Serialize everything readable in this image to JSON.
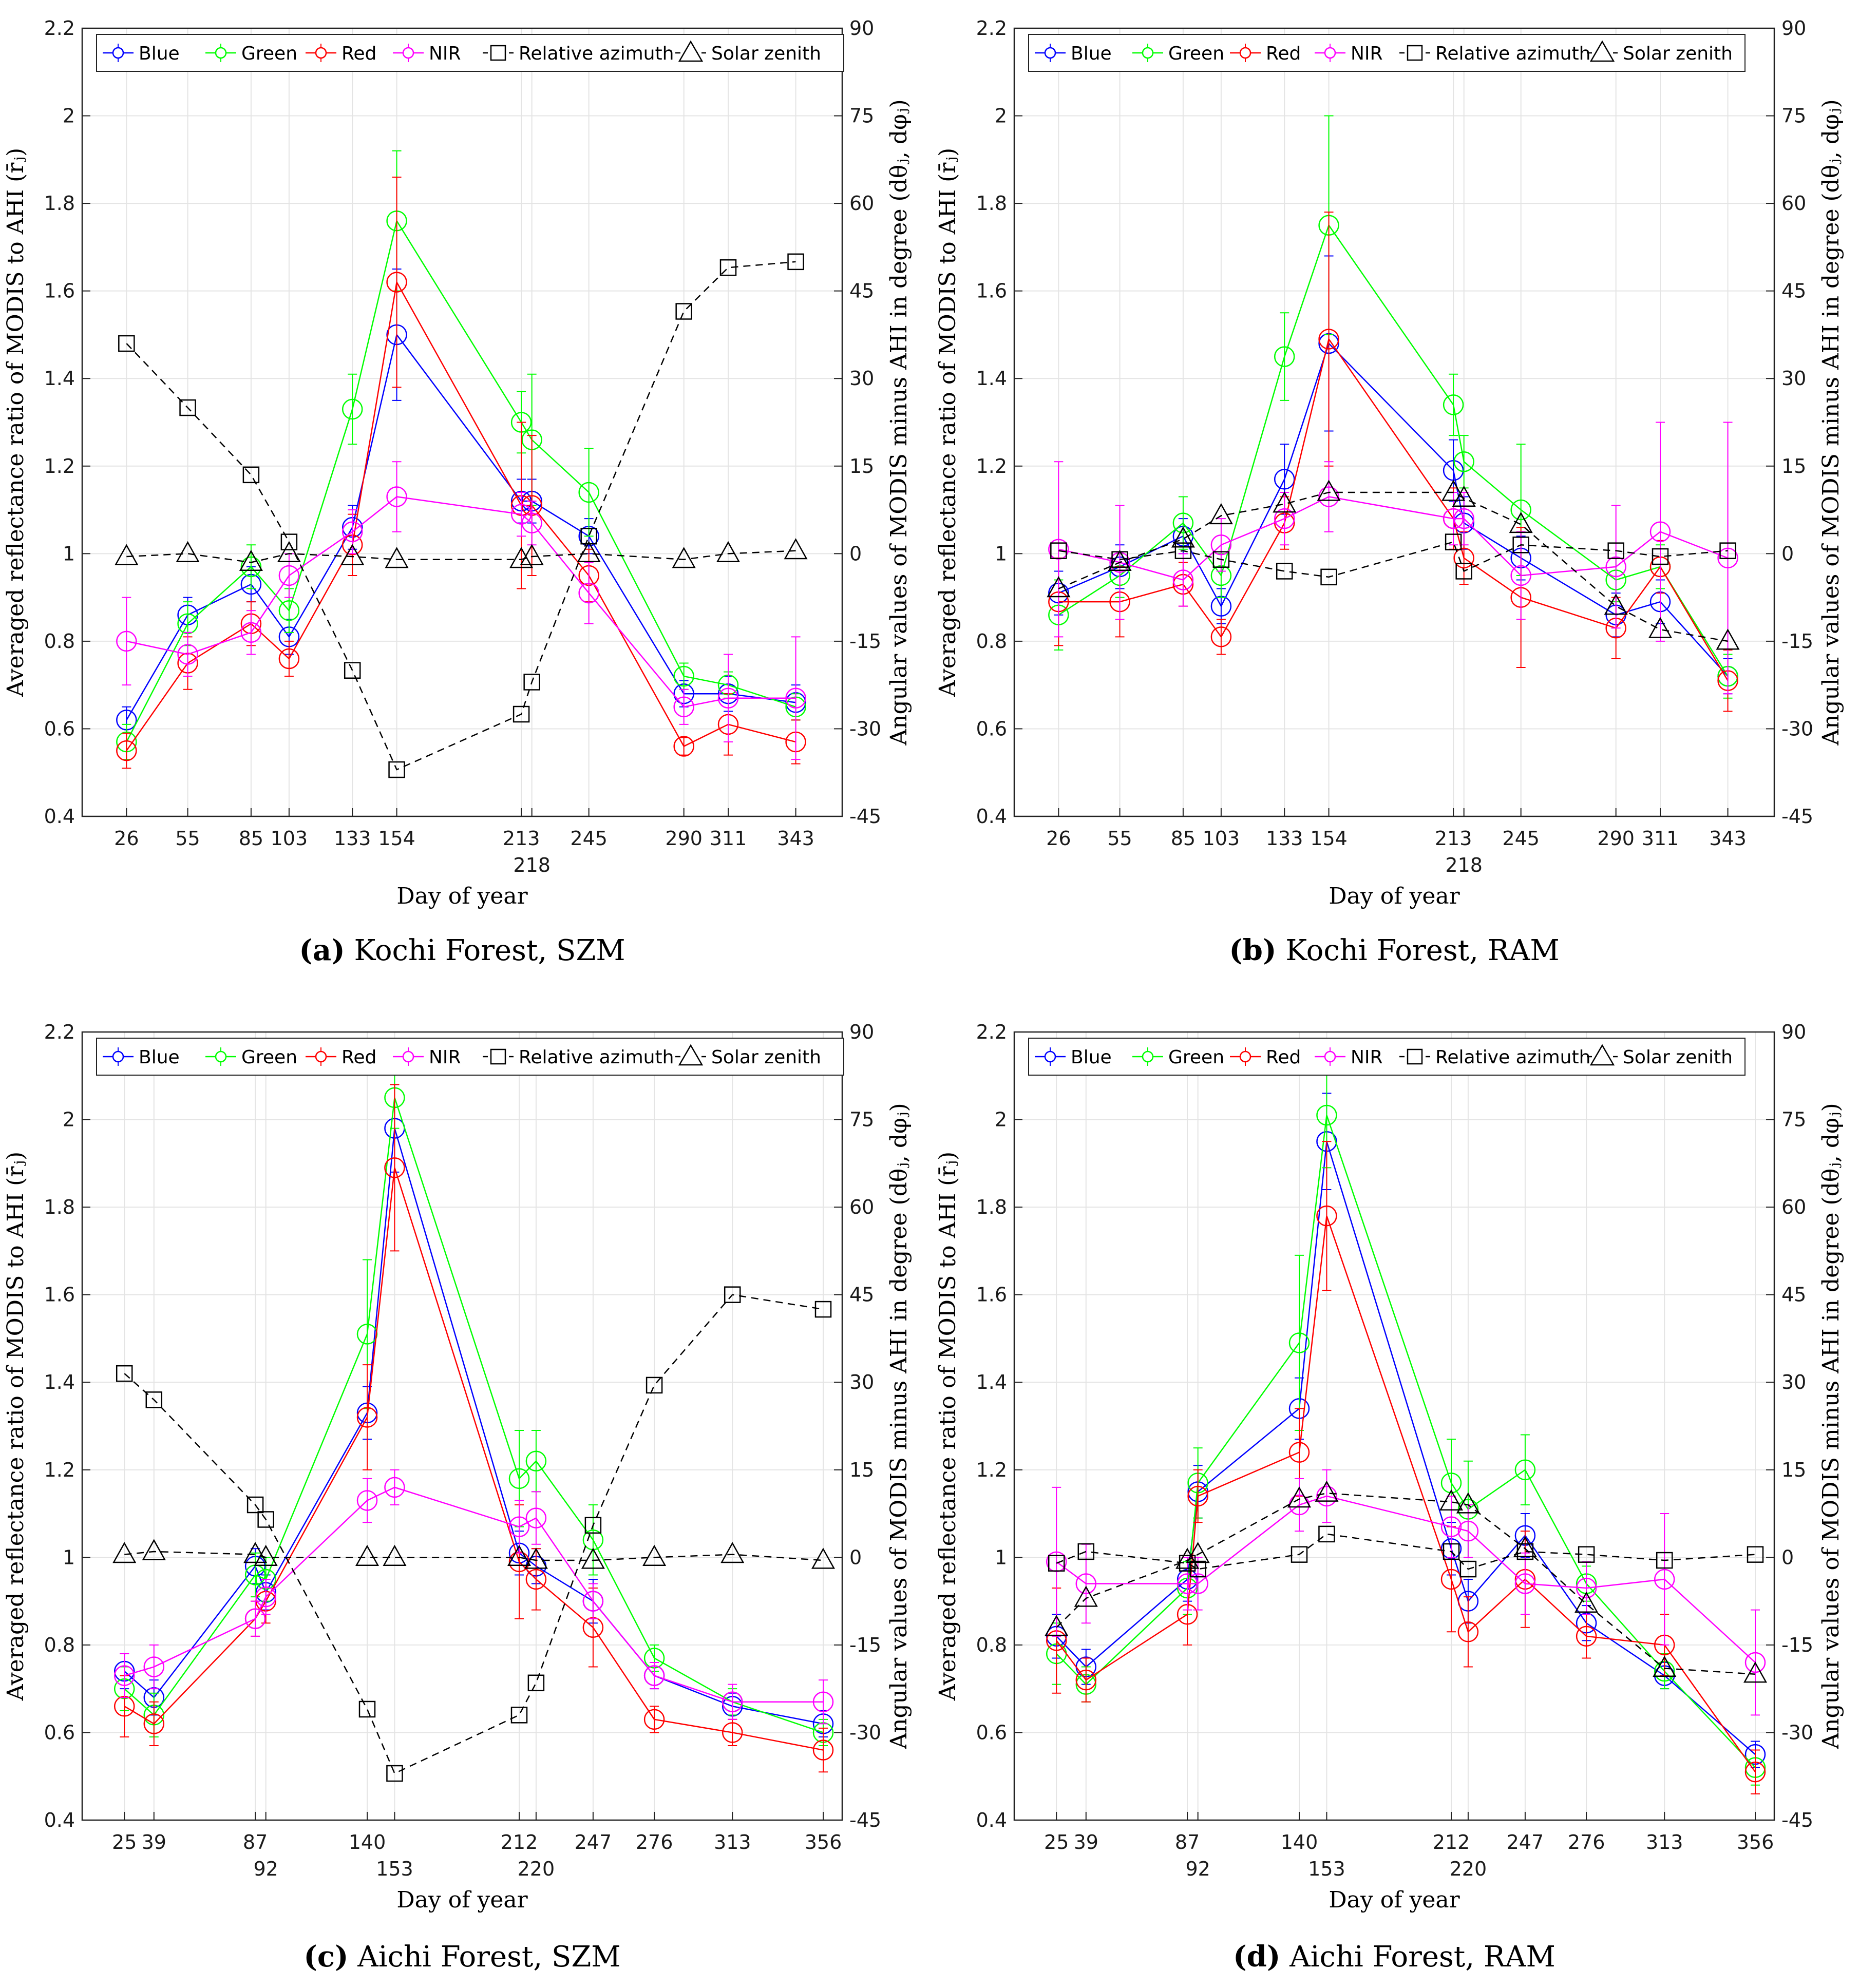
{
  "colors": {
    "blue": "#0000ff",
    "green": "#00ff00",
    "red": "#ff0000",
    "nir": "#ff00ff",
    "angles": "#000000"
  },
  "legend": [
    "Blue",
    "Green",
    "Red",
    "NIR",
    "Relative azimuth",
    "Solar zenith"
  ],
  "chart_data": [
    {
      "type": "line",
      "panel": "a",
      "caption_letter": "(a)",
      "caption_text": " Kochi Forest, SZM",
      "xlabel": "Day of year",
      "ylabel": "Averaged reflectance ratio of MODIS to AHI (r̄ⱼ)",
      "ylabel_right": "Angular values of MODIS minus AHI in degree (dθⱼ, dφⱼ)",
      "ylim": [
        0.4,
        2.2
      ],
      "yticks": [
        "0.4",
        "0.6",
        "0.8",
        "1",
        "1.2",
        "1.4",
        "1.6",
        "1.8",
        "2",
        "2.2"
      ],
      "y2lim": [
        -45,
        90
      ],
      "y2ticks": [
        "-45",
        "-30",
        "-15",
        "0",
        "15",
        "30",
        "45",
        "60",
        "75",
        "90"
      ],
      "xlim": [
        5,
        365
      ],
      "x": [
        26,
        55,
        85,
        103,
        133,
        154,
        213,
        218,
        245,
        290,
        311,
        343
      ],
      "xtick_labels": [
        "26",
        "55",
        "85",
        "103",
        "133",
        "154",
        "213",
        "218",
        "245",
        "290",
        "311",
        "343"
      ],
      "xtick_lower": [
        "218"
      ],
      "series": [
        {
          "name": "Blue",
          "values": [
            0.62,
            0.86,
            0.93,
            0.81,
            1.06,
            1.5,
            1.12,
            1.12,
            1.04,
            0.68,
            0.68,
            0.66
          ],
          "errors": [
            0.03,
            0.04,
            0.04,
            0.04,
            0.05,
            0.15,
            0.05,
            0.05,
            0.04,
            0.03,
            0.04,
            0.04
          ]
        },
        {
          "name": "Green",
          "values": [
            0.57,
            0.84,
            0.97,
            0.87,
            1.33,
            1.76,
            1.3,
            1.26,
            1.14,
            0.72,
            0.7,
            0.65
          ],
          "errors": [
            0.04,
            0.05,
            0.05,
            0.05,
            0.08,
            0.16,
            0.07,
            0.15,
            0.1,
            0.03,
            0.03,
            0.03
          ]
        },
        {
          "name": "Red",
          "values": [
            0.55,
            0.75,
            0.84,
            0.76,
            1.02,
            1.62,
            1.11,
            1.11,
            0.95,
            0.56,
            0.61,
            0.57
          ],
          "errors": [
            0.04,
            0.06,
            0.05,
            0.04,
            0.07,
            0.24,
            0.19,
            0.16,
            0.06,
            0.02,
            0.07,
            0.05
          ]
        },
        {
          "name": "NIR",
          "values": [
            0.8,
            0.77,
            0.82,
            0.95,
            1.05,
            1.13,
            1.09,
            1.07,
            0.91,
            0.65,
            0.67,
            0.67
          ],
          "errors": [
            0.1,
            0.05,
            0.05,
            0.05,
            0.05,
            0.08,
            0.05,
            0.05,
            0.07,
            0.04,
            0.1,
            0.14
          ]
        },
        {
          "name": "Relative azimuth",
          "axis": "right",
          "values": [
            36,
            25,
            13.5,
            2,
            -20,
            -37,
            -27.5,
            -22,
            3,
            41.5,
            49,
            50
          ]
        },
        {
          "name": "Solar zenith",
          "axis": "right",
          "values": [
            -0.5,
            0,
            -1.5,
            0,
            -0.5,
            -1,
            -1,
            -0.5,
            0,
            -1,
            0,
            0.5
          ]
        }
      ]
    },
    {
      "type": "line",
      "panel": "b",
      "caption_letter": "(b)",
      "caption_text": " Kochi Forest, RAM",
      "xlabel": "Day of year",
      "ylabel": "Averaged reflectance ratio of MODIS to AHI (r̄ⱼ)",
      "ylabel_right": "Angular values of MODIS minus AHI in degree (dθⱼ, dφⱼ)",
      "ylim": [
        0.4,
        2.2
      ],
      "yticks": [
        "0.4",
        "0.6",
        "0.8",
        "1",
        "1.2",
        "1.4",
        "1.6",
        "1.8",
        "2",
        "2.2"
      ],
      "y2lim": [
        -45,
        90
      ],
      "y2ticks": [
        "-45",
        "-30",
        "-15",
        "0",
        "15",
        "30",
        "45",
        "60",
        "75",
        "90"
      ],
      "xlim": [
        5,
        365
      ],
      "x": [
        26,
        55,
        85,
        103,
        133,
        154,
        213,
        218,
        245,
        290,
        311,
        343
      ],
      "xtick_labels": [
        "26",
        "55",
        "85",
        "103",
        "133",
        "154",
        "213",
        "218",
        "245",
        "290",
        "311",
        "343"
      ],
      "xtick_lower": [
        "218"
      ],
      "series": [
        {
          "name": "Blue",
          "values": [
            0.91,
            0.97,
            1.04,
            0.88,
            1.17,
            1.48,
            1.19,
            1.07,
            0.99,
            0.86,
            0.89,
            0.72
          ],
          "errors": [
            0.05,
            0.05,
            0.04,
            0.04,
            0.08,
            0.2,
            0.07,
            0.06,
            0.05,
            0.05,
            0.05,
            0.04
          ]
        },
        {
          "name": "Green",
          "values": [
            0.86,
            0.95,
            1.07,
            0.95,
            1.45,
            1.75,
            1.34,
            1.21,
            1.1,
            0.94,
            0.97,
            0.72
          ],
          "errors": [
            0.08,
            0.05,
            0.06,
            0.05,
            0.1,
            0.25,
            0.07,
            0.06,
            0.15,
            0.05,
            0.05,
            0.05
          ]
        },
        {
          "name": "Red",
          "values": [
            0.89,
            0.89,
            0.93,
            0.81,
            1.07,
            1.49,
            1.08,
            0.99,
            0.9,
            0.83,
            0.97,
            0.71
          ],
          "errors": [
            0.1,
            0.08,
            0.05,
            0.04,
            0.06,
            0.29,
            0.07,
            0.06,
            0.16,
            0.07,
            0.06,
            0.07
          ]
        },
        {
          "name": "NIR",
          "values": [
            1.01,
            0.98,
            0.94,
            1.02,
            1.08,
            1.13,
            1.08,
            1.08,
            0.95,
            0.97,
            1.05,
            0.99
          ],
          "errors": [
            0.2,
            0.13,
            0.06,
            0.06,
            0.06,
            0.08,
            0.06,
            0.06,
            0.1,
            0.14,
            0.25,
            0.31
          ]
        },
        {
          "name": "Relative azimuth",
          "axis": "right",
          "values": [
            0.5,
            -1,
            0.5,
            -1,
            -3,
            -4,
            2,
            -3,
            1.5,
            0.5,
            -0.5,
            0.5
          ]
        },
        {
          "name": "Solar zenith",
          "axis": "right",
          "values": [
            -6,
            -1.5,
            2.5,
            6.5,
            8.5,
            10.5,
            10.5,
            9.5,
            5,
            -9,
            -13,
            -15
          ]
        }
      ]
    },
    {
      "type": "line",
      "panel": "c",
      "caption_letter": "(c)",
      "caption_text": " Aichi Forest, SZM",
      "xlabel": "Day of year",
      "ylabel": "Averaged reflectance ratio of MODIS to AHI (r̄ⱼ)",
      "ylabel_right": "Angular values of MODIS minus AHI in degree (dθⱼ, dφⱼ)",
      "ylim": [
        0.4,
        2.2
      ],
      "yticks": [
        "0.4",
        "0.6",
        "0.8",
        "1",
        "1.2",
        "1.4",
        "1.6",
        "1.8",
        "2",
        "2.2"
      ],
      "y2lim": [
        -45,
        90
      ],
      "y2ticks": [
        "-45",
        "-30",
        "-15",
        "0",
        "15",
        "30",
        "45",
        "60",
        "75",
        "90"
      ],
      "xlim": [
        5,
        365
      ],
      "x": [
        25,
        39,
        87,
        92,
        140,
        153,
        212,
        220,
        247,
        276,
        313,
        356
      ],
      "xtick_labels": [
        "25",
        "39",
        "87",
        "92",
        "140",
        "153",
        "212",
        "220",
        "247",
        "276",
        "313",
        "356"
      ],
      "xtick_lower": [
        "92",
        "153",
        "220"
      ],
      "series": [
        {
          "name": "Blue",
          "values": [
            0.74,
            0.68,
            0.98,
            0.92,
            1.33,
            1.98,
            1.01,
            0.98,
            0.9,
            0.73,
            0.66,
            0.62
          ],
          "errors": [
            0.04,
            0.04,
            0.04,
            0.04,
            0.06,
            0.1,
            0.05,
            0.04,
            0.05,
            0.03,
            0.03,
            0.03
          ]
        },
        {
          "name": "Green",
          "values": [
            0.7,
            0.64,
            0.96,
            0.95,
            1.51,
            2.05,
            1.18,
            1.22,
            1.04,
            0.77,
            0.67,
            0.6
          ],
          "errors": [
            0.05,
            0.05,
            0.05,
            0.05,
            0.17,
            0.07,
            0.11,
            0.07,
            0.08,
            0.03,
            0.03,
            0.03
          ]
        },
        {
          "name": "Red",
          "values": [
            0.66,
            0.62,
            0.86,
            0.9,
            1.32,
            1.89,
            0.99,
            0.95,
            0.84,
            0.63,
            0.6,
            0.56
          ],
          "errors": [
            0.07,
            0.05,
            0.04,
            0.05,
            0.12,
            0.19,
            0.13,
            0.07,
            0.09,
            0.03,
            0.03,
            0.05
          ]
        },
        {
          "name": "NIR",
          "values": [
            0.73,
            0.75,
            0.86,
            0.91,
            1.13,
            1.16,
            1.07,
            1.09,
            0.9,
            0.73,
            0.67,
            0.67
          ],
          "errors": [
            0.05,
            0.05,
            0.04,
            0.04,
            0.05,
            0.04,
            0.06,
            0.06,
            0.04,
            0.03,
            0.04,
            0.05
          ]
        },
        {
          "name": "Relative azimuth",
          "axis": "right",
          "values": [
            31.5,
            27,
            9,
            6.5,
            -26,
            -37,
            -27,
            -21.5,
            5.5,
            29.5,
            45,
            42.5
          ]
        },
        {
          "name": "Solar zenith",
          "axis": "right",
          "values": [
            0.5,
            1,
            0.5,
            0,
            0,
            0,
            0,
            -0.5,
            -0.5,
            0,
            0.5,
            -0.5
          ]
        }
      ]
    },
    {
      "type": "line",
      "panel": "d",
      "caption_letter": "(d)",
      "caption_text": " Aichi Forest, RAM",
      "xlabel": "Day of year",
      "ylabel": "Averaged reflectance ratio of MODIS to AHI (r̄ⱼ)",
      "ylabel_right": "Angular values of MODIS minus AHI in degree (dθⱼ, dφⱼ)",
      "ylim": [
        0.4,
        2.2
      ],
      "yticks": [
        "0.4",
        "0.6",
        "0.8",
        "1",
        "1.2",
        "1.4",
        "1.6",
        "1.8",
        "2",
        "2.2"
      ],
      "y2lim": [
        -45,
        90
      ],
      "y2ticks": [
        "-45",
        "-30",
        "-15",
        "0",
        "15",
        "30",
        "45",
        "60",
        "75",
        "90"
      ],
      "xlim": [
        5,
        365
      ],
      "x": [
        25,
        39,
        87,
        92,
        140,
        153,
        212,
        220,
        247,
        276,
        313,
        356
      ],
      "xtick_labels": [
        "25",
        "39",
        "87",
        "92",
        "140",
        "153",
        "212",
        "220",
        "247",
        "276",
        "313",
        "356"
      ],
      "xtick_lower": [
        "92",
        "153",
        "220"
      ],
      "series": [
        {
          "name": "Blue",
          "values": [
            0.82,
            0.75,
            0.95,
            1.15,
            1.34,
            1.95,
            1.02,
            0.9,
            1.05,
            0.85,
            0.73,
            0.55
          ],
          "errors": [
            0.05,
            0.04,
            0.05,
            0.06,
            0.07,
            0.11,
            0.06,
            0.05,
            0.05,
            0.04,
            0.03,
            0.03
          ]
        },
        {
          "name": "Green",
          "values": [
            0.78,
            0.71,
            0.93,
            1.17,
            1.49,
            2.01,
            1.17,
            1.11,
            1.2,
            0.94,
            0.74,
            0.52
          ],
          "errors": [
            0.07,
            0.04,
            0.06,
            0.08,
            0.2,
            0.12,
            0.1,
            0.11,
            0.08,
            0.04,
            0.04,
            0.04
          ]
        },
        {
          "name": "Red",
          "values": [
            0.81,
            0.72,
            0.87,
            1.14,
            1.24,
            1.78,
            0.95,
            0.83,
            0.95,
            0.82,
            0.8,
            0.51
          ],
          "errors": [
            0.12,
            0.05,
            0.07,
            0.06,
            0.1,
            0.17,
            0.12,
            0.08,
            0.11,
            0.05,
            0.07,
            0.05
          ]
        },
        {
          "name": "NIR",
          "values": [
            0.99,
            0.94,
            0.94,
            0.94,
            1.12,
            1.14,
            1.07,
            1.06,
            0.94,
            0.93,
            0.95,
            0.76
          ],
          "errors": [
            0.17,
            0.09,
            0.06,
            0.06,
            0.06,
            0.06,
            0.07,
            0.06,
            0.07,
            0.06,
            0.15,
            0.12
          ]
        },
        {
          "name": "Relative azimuth",
          "axis": "right",
          "values": [
            -1,
            1,
            -1,
            -2,
            0.5,
            4,
            1,
            -2,
            1,
            0.5,
            -0.5,
            0.5
          ]
        },
        {
          "name": "Solar zenith",
          "axis": "right",
          "values": [
            -12,
            -7,
            -0.5,
            0.5,
            10,
            11,
            9.5,
            9,
            1.5,
            -8,
            -19,
            -20
          ]
        }
      ]
    }
  ]
}
